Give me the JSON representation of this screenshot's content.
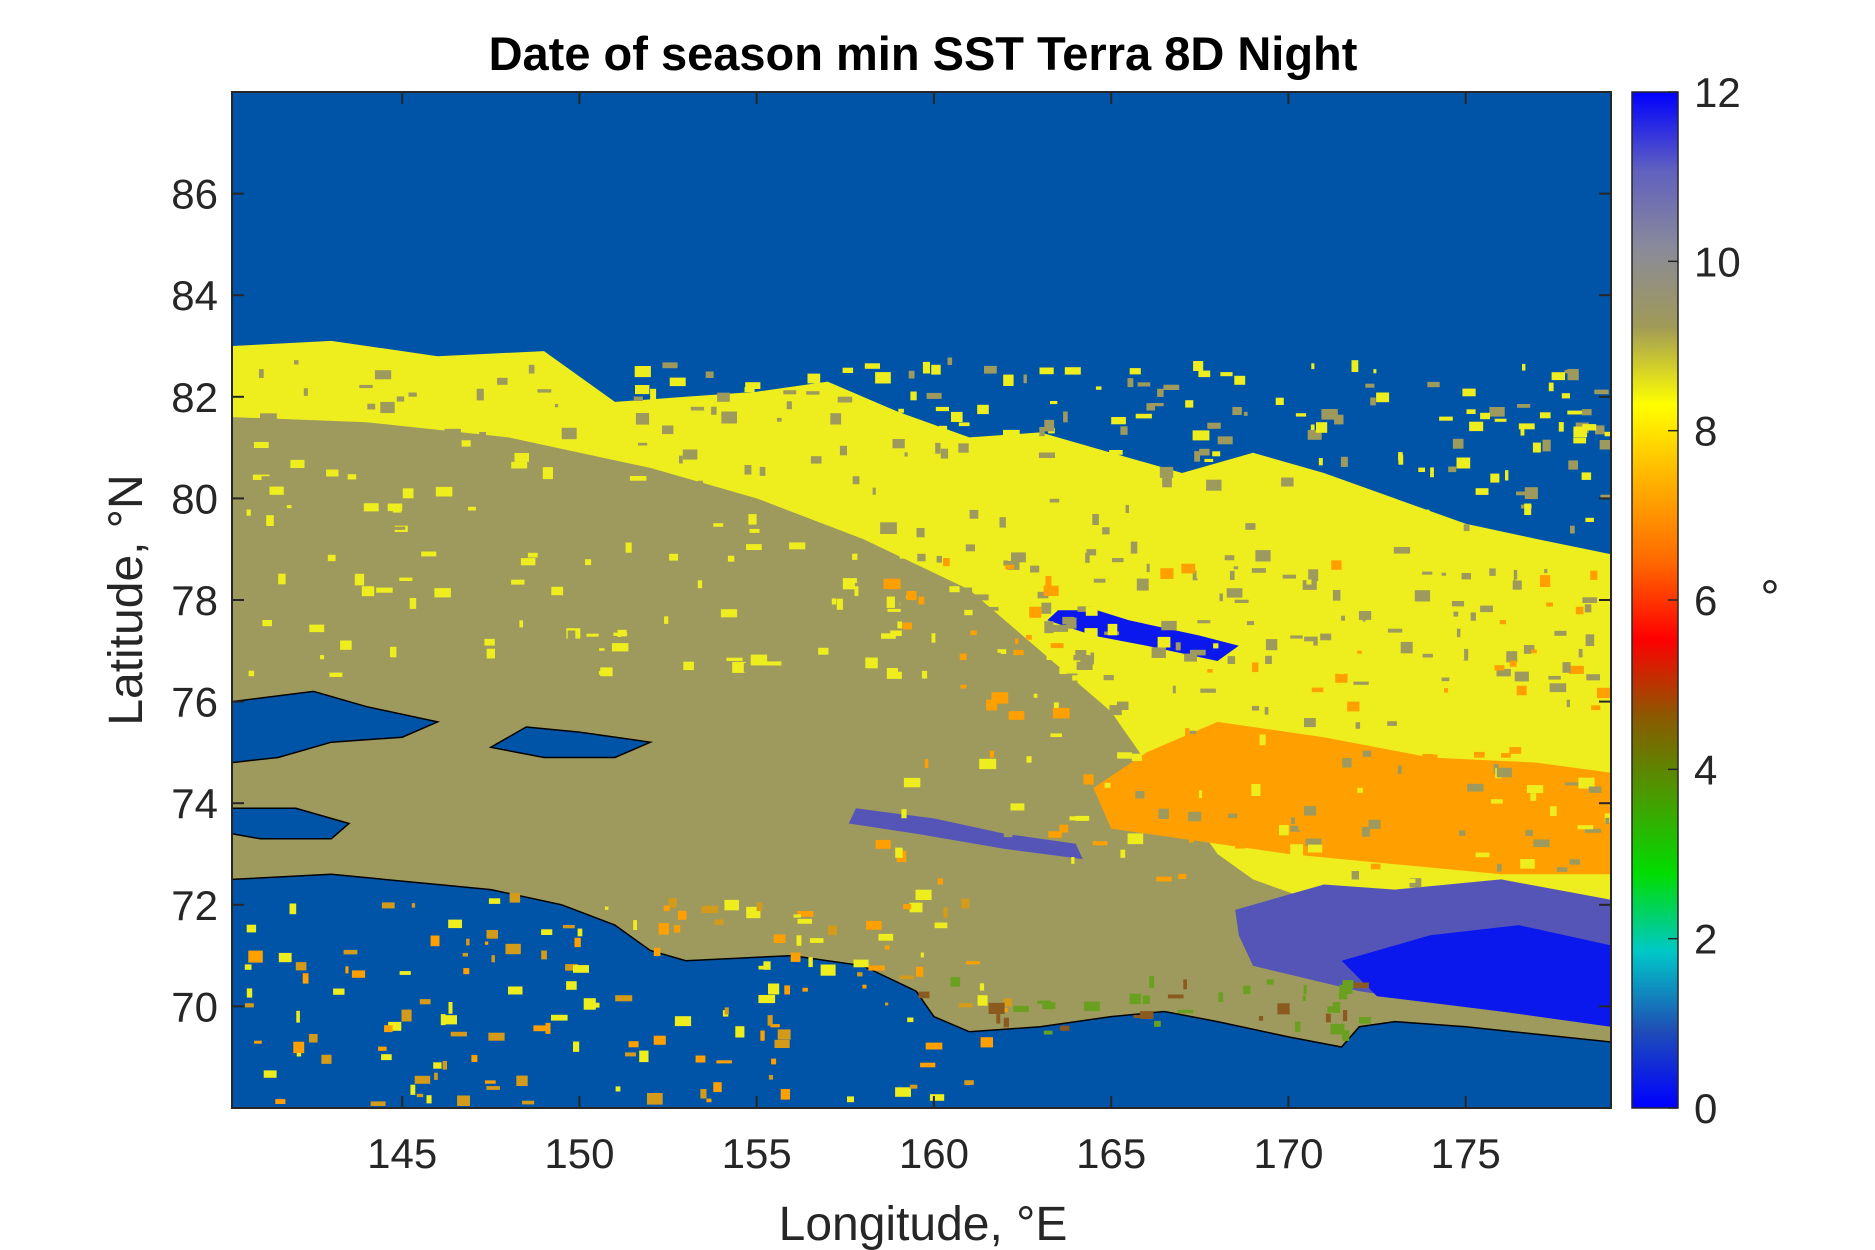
{
  "chart_data": {
    "type": "heatmap",
    "title": "Date of season min SST Terra 8D Night",
    "xlabel": "Longitude, °E",
    "ylabel": "Latitude, °N",
    "xlim": [
      140.2,
      179.1
    ],
    "ylim": [
      68.0,
      88.0
    ],
    "x_ticks": [
      145,
      150,
      155,
      160,
      165,
      170,
      175
    ],
    "y_ticks": [
      70,
      72,
      74,
      76,
      78,
      80,
      82,
      84,
      86
    ],
    "colorbar": {
      "label": "°",
      "range": [
        0,
        12
      ],
      "ticks": [
        0,
        2,
        4,
        6,
        8,
        10,
        12
      ],
      "colormap": [
        "#0000ff",
        "#1f4fb5",
        "#00c8c8",
        "#00dd00",
        "#4a9a00",
        "#8a5a00",
        "#ff0000",
        "#ff6a00",
        "#ffb000",
        "#ffff00",
        "#a09a58",
        "#8a8a9a",
        "#6060c0",
        "#0000ff"
      ]
    },
    "colors": {
      "ocean_no_data": "#0054a8",
      "land": "#9e9a5e",
      "value_9": "#eeee1e",
      "value_8": "#ffa000",
      "value_11": "#5555b8",
      "value_12": "#0a18ee",
      "value_4": "#6aa020",
      "coastline": "#000000"
    },
    "grid": false,
    "colorbar_position": "right"
  }
}
